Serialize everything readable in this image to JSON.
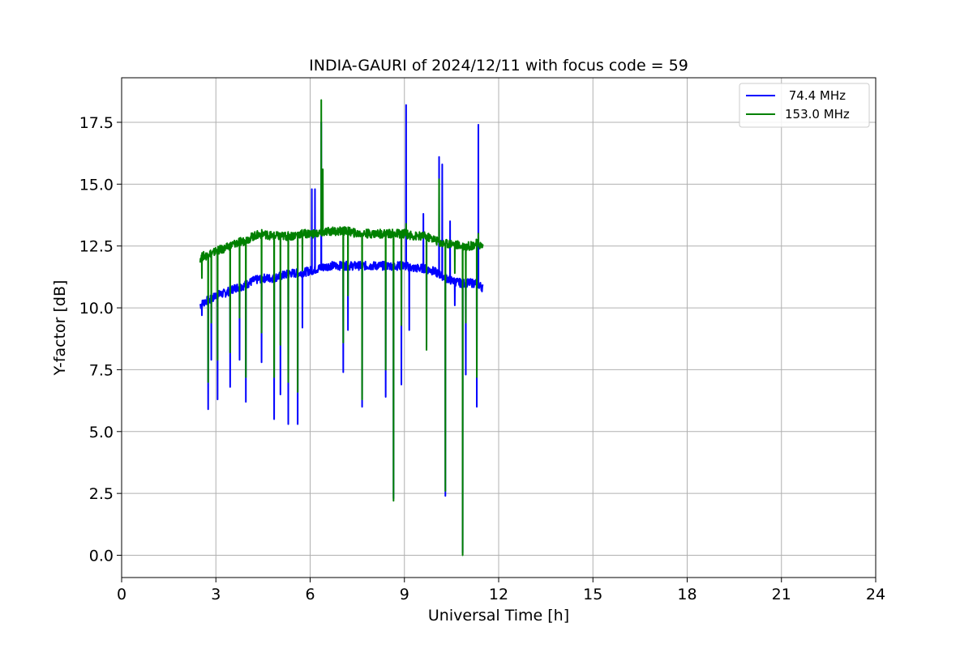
{
  "chart_data": {
    "type": "line",
    "title": "INDIA-GAURI of 2024/12/11 with focus code = 59",
    "xlabel": "Universal Time [h]",
    "ylabel": "Y-factor [dB]",
    "xlim": [
      0,
      24
    ],
    "ylim": [
      -0.9,
      19.3
    ],
    "xticks": [
      0,
      3,
      6,
      9,
      12,
      15,
      18,
      21,
      24
    ],
    "xtick_labels": [
      "0",
      "3",
      "6",
      "9",
      "12",
      "15",
      "18",
      "21",
      "24"
    ],
    "yticks": [
      0,
      2.5,
      5,
      7.5,
      10,
      12.5,
      15,
      17.5
    ],
    "ytick_labels": [
      "0.0",
      "2.5",
      "5.0",
      "7.5",
      "10.0",
      "12.5",
      "15.0",
      "17.5"
    ],
    "grid": true,
    "legend_position": "top-right",
    "series": [
      {
        "name": " 74.4 MHz",
        "color": "#0000ff",
        "x": [
          2.5,
          2.6,
          2.7,
          2.8,
          2.9,
          3.0,
          3.3,
          3.6,
          3.9,
          4.2,
          4.5,
          4.8,
          5.1,
          5.4,
          5.7,
          6.0,
          6.3,
          6.6,
          6.9,
          7.2,
          7.5,
          7.8,
          8.1,
          8.4,
          8.7,
          9.0,
          9.3,
          9.6,
          9.9,
          10.2,
          10.5,
          10.8,
          11.1,
          11.3,
          11.5
        ],
        "y": [
          10.1,
          10.2,
          10.3,
          10.3,
          10.4,
          10.5,
          10.6,
          10.8,
          10.9,
          11.1,
          11.2,
          11.2,
          11.3,
          11.4,
          11.4,
          11.5,
          11.6,
          11.7,
          11.7,
          11.7,
          11.7,
          11.7,
          11.7,
          11.7,
          11.7,
          11.7,
          11.6,
          11.6,
          11.5,
          11.3,
          11.1,
          11.0,
          11.0,
          11.0,
          10.8
        ],
        "spikes": [
          [
            2.55,
            9.7
          ],
          [
            2.75,
            5.9
          ],
          [
            2.85,
            7.9
          ],
          [
            3.05,
            6.3
          ],
          [
            3.45,
            6.8
          ],
          [
            3.75,
            7.9
          ],
          [
            3.95,
            6.2
          ],
          [
            4.45,
            7.8
          ],
          [
            4.85,
            5.5
          ],
          [
            5.05,
            6.5
          ],
          [
            5.3,
            5.3
          ],
          [
            5.6,
            5.3
          ],
          [
            5.75,
            9.2
          ],
          [
            6.05,
            14.8
          ],
          [
            6.15,
            14.8
          ],
          [
            6.35,
            17.5
          ],
          [
            7.05,
            7.4
          ],
          [
            7.2,
            9.1
          ],
          [
            7.65,
            6.0
          ],
          [
            8.4,
            6.4
          ],
          [
            8.65,
            2.3
          ],
          [
            8.9,
            6.9
          ],
          [
            9.05,
            18.2
          ],
          [
            9.15,
            9.1
          ],
          [
            9.6,
            13.8
          ],
          [
            9.7,
            8.4
          ],
          [
            10.1,
            16.1
          ],
          [
            10.2,
            15.8
          ],
          [
            10.3,
            2.4
          ],
          [
            10.45,
            13.5
          ],
          [
            10.6,
            10.1
          ],
          [
            10.85,
            0.1
          ],
          [
            10.95,
            7.3
          ],
          [
            11.3,
            6.0
          ],
          [
            11.35,
            17.4
          ],
          [
            11.45,
            10.9
          ]
        ]
      },
      {
        "name": "153.0 MHz",
        "color": "#008000",
        "x": [
          2.5,
          2.6,
          2.7,
          2.8,
          2.9,
          3.0,
          3.3,
          3.6,
          3.9,
          4.2,
          4.5,
          4.8,
          5.1,
          5.4,
          5.7,
          6.0,
          6.3,
          6.6,
          6.9,
          7.2,
          7.5,
          7.8,
          8.1,
          8.4,
          8.7,
          9.0,
          9.3,
          9.6,
          9.9,
          10.2,
          10.5,
          10.8,
          11.1,
          11.3,
          11.5
        ],
        "y": [
          12.0,
          12.1,
          12.1,
          12.2,
          12.2,
          12.3,
          12.4,
          12.6,
          12.7,
          12.9,
          13.0,
          12.9,
          12.9,
          12.9,
          13.0,
          13.0,
          13.0,
          13.1,
          13.1,
          13.1,
          13.0,
          13.0,
          13.0,
          13.0,
          13.0,
          13.0,
          12.9,
          12.9,
          12.8,
          12.6,
          12.6,
          12.5,
          12.5,
          12.6,
          12.5
        ],
        "spikes": [
          [
            2.55,
            11.2
          ],
          [
            2.75,
            7.0
          ],
          [
            2.85,
            9.4
          ],
          [
            3.05,
            7.9
          ],
          [
            3.45,
            8.2
          ],
          [
            3.75,
            9.6
          ],
          [
            3.95,
            7.2
          ],
          [
            4.45,
            9.0
          ],
          [
            4.85,
            7.2
          ],
          [
            5.05,
            8.5
          ],
          [
            5.3,
            7.0
          ],
          [
            5.6,
            6.6
          ],
          [
            5.75,
            11.5
          ],
          [
            6.35,
            18.4
          ],
          [
            6.4,
            15.6
          ],
          [
            7.05,
            8.6
          ],
          [
            7.2,
            10.5
          ],
          [
            7.65,
            6.3
          ],
          [
            8.4,
            7.5
          ],
          [
            8.65,
            2.2
          ],
          [
            8.9,
            9.3
          ],
          [
            9.05,
            13.4
          ],
          [
            9.7,
            8.3
          ],
          [
            10.1,
            15.2
          ],
          [
            10.3,
            2.6
          ],
          [
            10.6,
            11.4
          ],
          [
            10.85,
            0.0
          ],
          [
            10.95,
            9.4
          ],
          [
            11.3,
            7.2
          ],
          [
            11.35,
            13.0
          ]
        ]
      }
    ]
  }
}
